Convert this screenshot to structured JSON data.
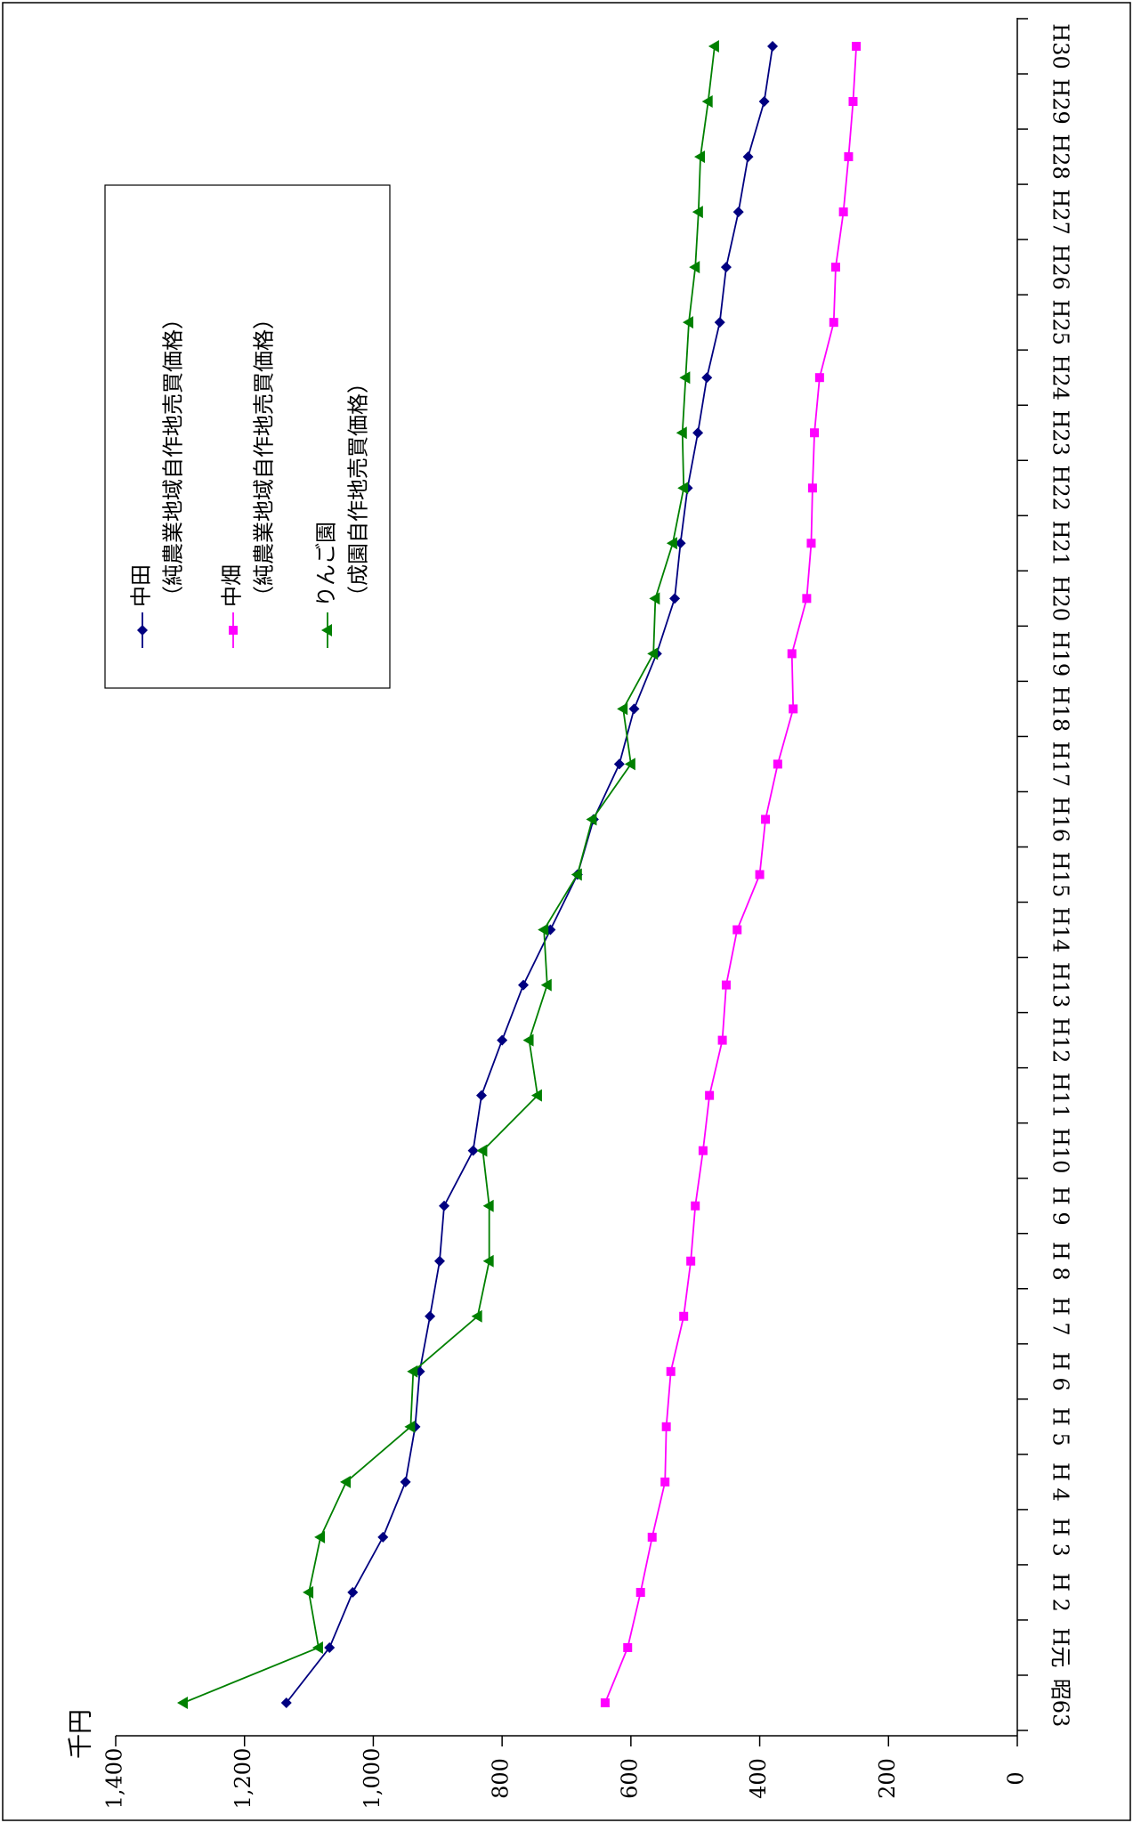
{
  "chart_data": {
    "type": "line",
    "title": "",
    "ylabel": "千円",
    "xlabel": "",
    "ylim": [
      0,
      1400
    ],
    "y_ticks": [
      0,
      200,
      400,
      600,
      800,
      1000,
      1200,
      1400
    ],
    "y_tick_labels": [
      "0",
      "200",
      "400",
      "600",
      "800",
      "1,000",
      "1,200",
      "1,400"
    ],
    "categories": [
      "昭63",
      "H元",
      "H 2",
      "H 3",
      "H 4",
      "H 5",
      "H 6",
      "H 7",
      "H 8",
      "H 9",
      "H10",
      "H11",
      "H12",
      "H13",
      "H14",
      "H15",
      "H16",
      "H17",
      "H18",
      "H19",
      "H20",
      "H21",
      "H22",
      "H23",
      "H24",
      "H25",
      "H26",
      "H27",
      "H28",
      "H29",
      "H30"
    ],
    "legend_position": "upper-left",
    "grid": false,
    "series": [
      {
        "name": "中田",
        "name_sub": "（純農業地域自作地売買価格）",
        "color": "#000080",
        "marker": "diamond",
        "values": [
          1135,
          1068,
          1032,
          985,
          950,
          935,
          928,
          912,
          897,
          890,
          845,
          832,
          800,
          767,
          725,
          683,
          658,
          618,
          595,
          560,
          532,
          523,
          512,
          496,
          482,
          462,
          452,
          433,
          418,
          393,
          380
        ]
      },
      {
        "name": "中畑",
        "name_sub": "（純農業地域自作地売買価格）",
        "color": "#ff00ff",
        "marker": "square",
        "values": [
          640,
          605,
          585,
          567,
          547,
          545,
          538,
          518,
          507,
          500,
          488,
          478,
          458,
          452,
          435,
          400,
          391,
          372,
          348,
          350,
          327,
          320,
          318,
          315,
          307,
          285,
          282,
          270,
          262,
          255,
          250
        ]
      },
      {
        "name": "りんご園",
        "name_sub": "（成園自作地売買価格）",
        "color": "#008000",
        "marker": "triangle",
        "values": [
          1295,
          1085,
          1100,
          1082,
          1042,
          942,
          938,
          838,
          820,
          820,
          830,
          745,
          758,
          730,
          735,
          683,
          660,
          600,
          612,
          565,
          562,
          535,
          518,
          520,
          515,
          510,
          500,
          495,
          492,
          480,
          470
        ]
      }
    ]
  }
}
